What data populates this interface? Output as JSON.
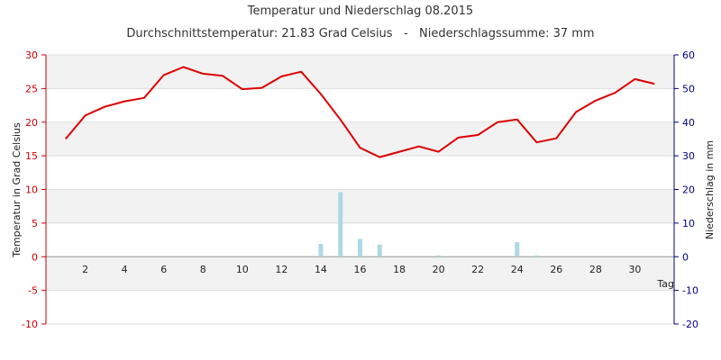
{
  "chart_data": {
    "type": "bar+line",
    "title": "Temperatur und Niederschlag 08.2015",
    "subtitle": "Durchschnittstemperatur: 21.83 Grad Celsius   -   Niederschlagssumme: 37 mm",
    "xlabel": "Tag",
    "ylabel_left": "Temperatur in Grad Celsius",
    "ylabel_right": "Niederschlag in mm",
    "xlim": [
      0,
      32
    ],
    "ylim_left": [
      -10,
      30
    ],
    "ylim_right": [
      -20,
      60
    ],
    "x_ticks": [
      2,
      4,
      6,
      8,
      10,
      12,
      14,
      16,
      18,
      20,
      22,
      24,
      26,
      28,
      30
    ],
    "y_left_ticks": [
      -10,
      -5,
      0,
      5,
      10,
      15,
      20,
      25,
      30
    ],
    "y_right_ticks": [
      -20,
      -10,
      0,
      10,
      20,
      30,
      40,
      50,
      60
    ],
    "grid": true,
    "colors": {
      "temperature": "#dd0000",
      "precipitation": "#add8e6",
      "left_axis": "#cc0000",
      "right_axis": "#000080",
      "band": "#f2f2f2",
      "grid": "#dddddd"
    },
    "days": [
      1,
      2,
      3,
      4,
      5,
      6,
      7,
      8,
      9,
      10,
      11,
      12,
      13,
      14,
      15,
      16,
      17,
      18,
      19,
      20,
      21,
      22,
      23,
      24,
      25,
      26,
      27,
      28,
      29,
      30,
      31
    ],
    "temperature": [
      17.5,
      21.0,
      22.3,
      23.1,
      23.6,
      27.0,
      28.2,
      27.2,
      26.9,
      24.9,
      25.1,
      26.8,
      27.5,
      24.2,
      20.4,
      16.2,
      14.8,
      15.6,
      16.4,
      15.6,
      17.7,
      18.1,
      20.0,
      20.4,
      17.0,
      17.6,
      21.5,
      23.2,
      24.4,
      26.4,
      25.7
    ],
    "precipitation": [
      0,
      0,
      0,
      0,
      0,
      0,
      0,
      0,
      0,
      0,
      0,
      0,
      0,
      3.8,
      19.2,
      5.3,
      3.6,
      0,
      0,
      0.4,
      0,
      0,
      0,
      4.3,
      0.4,
      0,
      0,
      0,
      0,
      0,
      0
    ]
  }
}
